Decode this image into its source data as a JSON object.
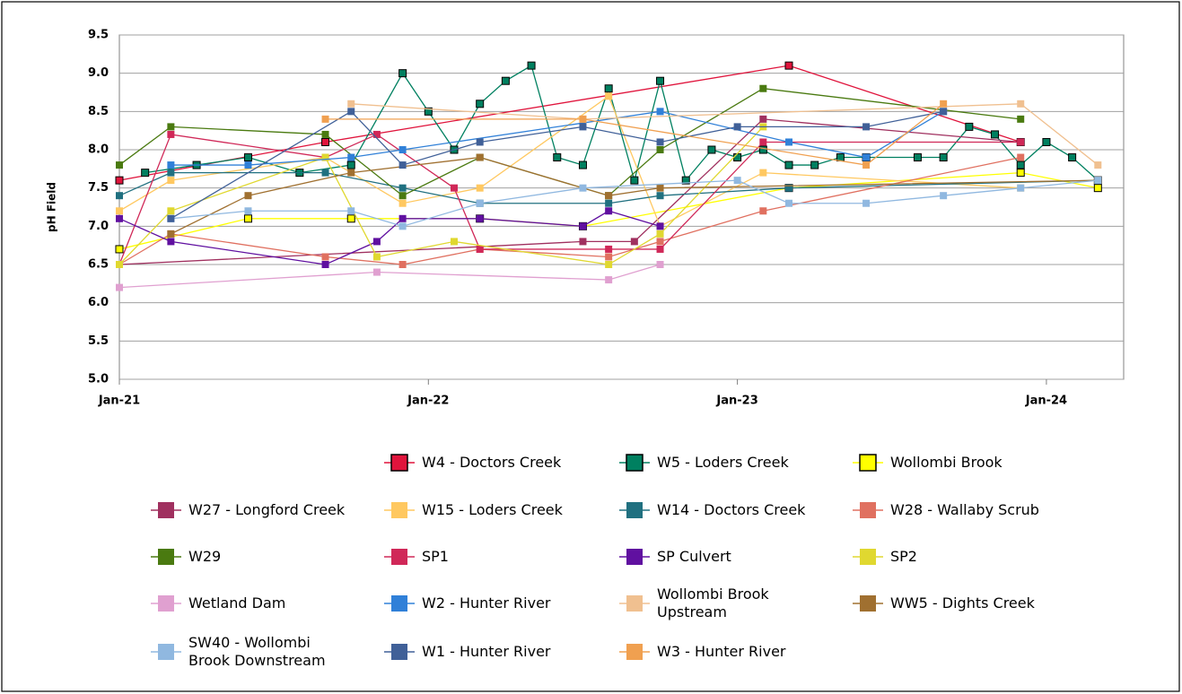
{
  "chart_data": {
    "type": "line",
    "ylabel": "pH Field",
    "xlim": [
      "2021-01",
      "2024-04"
    ],
    "xticks": [
      {
        "value": "2021-01",
        "label": "Jan-21"
      },
      {
        "value": "2022-01",
        "label": "Jan-22"
      },
      {
        "value": "2023-01",
        "label": "Jan-23"
      },
      {
        "value": "2024-01",
        "label": "Jan-24"
      }
    ],
    "ylim": [
      5.0,
      9.5
    ],
    "yticks": [
      {
        "value": 5.0,
        "label": "5.0"
      },
      {
        "value": 5.5,
        "label": "5.5"
      },
      {
        "value": 6.0,
        "label": "6.0"
      },
      {
        "value": 6.5,
        "label": "6.5"
      },
      {
        "value": 7.0,
        "label": "7.0"
      },
      {
        "value": 7.5,
        "label": "7.5"
      },
      {
        "value": 8.0,
        "label": "8.0"
      },
      {
        "value": 8.5,
        "label": "8.5"
      },
      {
        "value": 9.0,
        "label": "9.0"
      },
      {
        "value": 9.5,
        "label": "9.5"
      }
    ],
    "grid": true,
    "legend": "bottom",
    "series": [
      {
        "name": "W4 - Doctors Creek",
        "color": "#e0143c",
        "edgecolor": "#000000",
        "x": [
          "2021-01",
          "2021-09",
          "2023-03",
          "2023-12"
        ],
        "values": [
          7.6,
          8.1,
          9.1,
          8.1
        ]
      },
      {
        "name": "W5 - Loders Creek",
        "color": "#008060",
        "edgecolor": "#000000",
        "x": [
          "2021-02",
          "2021-04",
          "2021-06",
          "2021-08",
          "2021-10",
          "2021-12",
          "2022-01",
          "2022-02",
          "2022-03",
          "2022-04",
          "2022-05",
          "2022-06",
          "2022-07",
          "2022-08",
          "2022-09",
          "2022-10",
          "2022-11",
          "2022-12",
          "2023-01",
          "2023-02",
          "2023-03",
          "2023-04",
          "2023-05",
          "2023-06",
          "2023-08",
          "2023-09",
          "2023-10",
          "2023-11",
          "2023-12",
          "2024-01",
          "2024-02",
          "2024-03"
        ],
        "values": [
          7.7,
          7.8,
          7.9,
          7.7,
          7.8,
          9.0,
          8.5,
          8.0,
          8.6,
          8.9,
          9.1,
          7.9,
          7.8,
          8.8,
          7.6,
          8.9,
          7.6,
          8.0,
          7.9,
          8.0,
          7.8,
          7.8,
          7.9,
          7.9,
          7.9,
          7.9,
          8.3,
          8.2,
          7.8,
          8.1,
          7.9,
          7.6
        ]
      },
      {
        "name": "Wollombi Brook",
        "color": "#ffff00",
        "edgecolor": "#000000",
        "x": [
          "2021-01",
          "2021-06",
          "2021-10",
          "2022-03",
          "2022-07",
          "2023-03",
          "2023-12",
          "2024-03"
        ],
        "values": [
          6.7,
          7.1,
          7.1,
          7.1,
          7.0,
          7.5,
          7.7,
          7.5
        ]
      },
      {
        "name": "W27 - Longford Creek",
        "color": "#a0305f",
        "x": [
          "2021-01",
          "2022-07",
          "2022-09",
          "2023-02",
          "2023-12"
        ],
        "values": [
          6.5,
          6.8,
          6.8,
          8.4,
          8.1
        ]
      },
      {
        "name": "W15 - Loders Creek",
        "color": "#ffc860",
        "x": [
          "2021-01",
          "2021-03",
          "2021-09",
          "2021-12",
          "2022-03",
          "2022-08",
          "2022-10",
          "2023-02",
          "2023-12"
        ],
        "values": [
          7.2,
          7.6,
          7.9,
          7.3,
          7.5,
          8.7,
          7.0,
          7.7,
          7.5
        ]
      },
      {
        "name": "W14 - Doctors Creek",
        "color": "#207080",
        "x": [
          "2021-01",
          "2021-03",
          "2021-09",
          "2021-12",
          "2022-03",
          "2022-08",
          "2022-10",
          "2023-03",
          "2024-03"
        ],
        "values": [
          7.4,
          7.7,
          7.7,
          7.5,
          7.3,
          7.3,
          7.4,
          7.5,
          7.6
        ]
      },
      {
        "name": "W28 - Wallaby Scrub",
        "color": "#e07060",
        "x": [
          "2021-01",
          "2021-03",
          "2021-09",
          "2021-12",
          "2022-03",
          "2022-08",
          "2022-10",
          "2023-02",
          "2023-12"
        ],
        "values": [
          6.5,
          6.9,
          6.6,
          6.5,
          6.7,
          6.6,
          6.8,
          7.2,
          7.9
        ]
      },
      {
        "name": "W29",
        "color": "#4a7a10",
        "x": [
          "2021-01",
          "2021-03",
          "2021-09",
          "2021-12",
          "2022-03",
          "2022-08",
          "2022-10",
          "2023-02",
          "2023-12"
        ],
        "values": [
          7.8,
          8.3,
          8.2,
          7.4,
          7.9,
          7.4,
          8.0,
          8.8,
          8.4
        ]
      },
      {
        "name": "SP1",
        "color": "#d02858",
        "x": [
          "2021-01",
          "2021-03",
          "2021-09",
          "2021-11",
          "2022-02",
          "2022-03",
          "2022-08",
          "2022-10",
          "2023-02",
          "2023-12"
        ],
        "values": [
          6.5,
          8.2,
          7.9,
          8.2,
          7.5,
          6.7,
          6.7,
          6.7,
          8.1,
          8.1
        ]
      },
      {
        "name": "SP Culvert",
        "color": "#6010a0",
        "x": [
          "2021-01",
          "2021-03",
          "2021-09",
          "2021-11",
          "2021-12",
          "2022-03",
          "2022-07",
          "2022-08",
          "2022-10"
        ],
        "values": [
          7.1,
          6.8,
          6.5,
          6.8,
          7.1,
          7.1,
          7.0,
          7.2,
          7.0
        ]
      },
      {
        "name": "SP2",
        "color": "#e0d830",
        "x": [
          "2021-01",
          "2021-03",
          "2021-09",
          "2021-11",
          "2022-02",
          "2022-08",
          "2022-10",
          "2023-02"
        ],
        "values": [
          6.5,
          7.2,
          7.9,
          6.6,
          6.8,
          6.5,
          6.9,
          8.3
        ]
      },
      {
        "name": "Wetland Dam",
        "color": "#e0a0d0",
        "x": [
          "2021-01",
          "2021-11",
          "2022-08",
          "2022-10"
        ],
        "values": [
          6.2,
          6.4,
          6.3,
          6.5
        ]
      },
      {
        "name": "W2 - Hunter River",
        "color": "#3080d8",
        "x": [
          "2021-03",
          "2021-06",
          "2021-10",
          "2021-12",
          "2022-10",
          "2023-03",
          "2023-06",
          "2023-09"
        ],
        "values": [
          7.8,
          7.8,
          7.9,
          8.0,
          8.5,
          8.1,
          7.9,
          8.5
        ]
      },
      {
        "name": "Wollombi Brook Upstream",
        "color": "#f0c090",
        "x": [
          "2021-10",
          "2022-07",
          "2023-12",
          "2024-03"
        ],
        "values": [
          8.6,
          8.4,
          8.6,
          7.8
        ]
      },
      {
        "name": "WW5 - Dights Creek",
        "color": "#a07030",
        "x": [
          "2021-03",
          "2021-06",
          "2021-10",
          "2022-03",
          "2022-08",
          "2022-10",
          "2024-03"
        ],
        "values": [
          6.9,
          7.4,
          7.7,
          7.9,
          7.4,
          7.5,
          7.6
        ]
      },
      {
        "name": "SW40 - Wollombi Brook Downstream",
        "color": "#90b8e0",
        "x": [
          "2021-03",
          "2021-06",
          "2021-10",
          "2021-12",
          "2022-03",
          "2022-07",
          "2023-01",
          "2023-03",
          "2023-06",
          "2023-09",
          "2023-12",
          "2024-03"
        ],
        "values": [
          7.1,
          7.2,
          7.2,
          7.0,
          7.3,
          7.5,
          7.6,
          7.3,
          7.3,
          7.4,
          7.5,
          7.6
        ]
      },
      {
        "name": "W1 - Hunter River",
        "color": "#406098",
        "x": [
          "2021-03",
          "2021-10",
          "2021-12",
          "2022-03",
          "2022-07",
          "2022-10",
          "2023-01",
          "2023-06",
          "2023-09"
        ],
        "values": [
          7.1,
          8.5,
          7.8,
          8.1,
          8.3,
          8.1,
          8.3,
          8.3,
          8.5
        ]
      },
      {
        "name": "W3 - Hunter River",
        "color": "#f0a050",
        "x": [
          "2021-09",
          "2022-07",
          "2023-06",
          "2023-09"
        ],
        "values": [
          8.4,
          8.4,
          7.8,
          8.6
        ]
      }
    ]
  }
}
